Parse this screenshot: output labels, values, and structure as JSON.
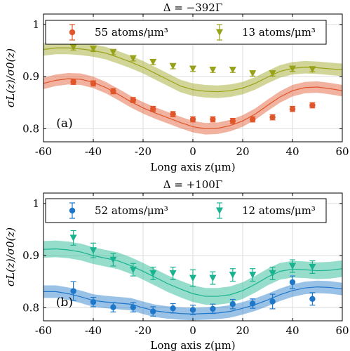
{
  "colors": {
    "red": "#e0552a",
    "olive": "#98a219",
    "blue": "#1f77c9",
    "teal": "#19b38f",
    "grid": "#dddddd",
    "axis": "#000000"
  },
  "chart_data": [
    {
      "type": "scatter",
      "panel_label": "(a)",
      "title": "Δ = −392Γ",
      "xlabel": "Long axis z(μm)",
      "ylabel": "σL(z)/σ0(z)",
      "xlim": [
        -60,
        60
      ],
      "ylim": [
        0.775,
        1.02
      ],
      "xticks": [
        -60,
        -40,
        -20,
        0,
        20,
        40,
        60
      ],
      "yticks": [
        0.8,
        0.9,
        1
      ],
      "ytick_labels": [
        "0.8",
        "0.9",
        "1"
      ],
      "grid": true,
      "legend_position": "top",
      "series": [
        {
          "name": "55 atoms/μm³",
          "color_key": "red",
          "marker": "circle",
          "x": [
            -48,
            -40,
            -32,
            -24,
            -16,
            -8,
            0,
            8,
            16,
            24,
            32,
            40,
            48
          ],
          "y": [
            0.89,
            0.887,
            0.872,
            0.855,
            0.838,
            0.828,
            0.818,
            0.818,
            0.815,
            0.818,
            0.822,
            0.838,
            0.845
          ],
          "err": [
            0.005,
            0.005,
            0.005,
            0.005,
            0.005,
            0.005,
            0.005,
            0.005,
            0.005,
            0.005,
            0.005,
            0.005,
            0.005
          ],
          "curve_x": [
            -60,
            -55,
            -50,
            -45,
            -40,
            -35,
            -30,
            -25,
            -20,
            -15,
            -10,
            -5,
            0,
            5,
            10,
            15,
            20,
            25,
            30,
            35,
            40,
            45,
            50,
            55,
            60
          ],
          "curve_y": [
            0.887,
            0.893,
            0.896,
            0.895,
            0.889,
            0.879,
            0.866,
            0.852,
            0.84,
            0.83,
            0.821,
            0.812,
            0.804,
            0.8,
            0.801,
            0.806,
            0.815,
            0.828,
            0.845,
            0.861,
            0.873,
            0.879,
            0.88,
            0.877,
            0.873
          ],
          "band": 0.011
        },
        {
          "name": "13 atoms/μm³",
          "color_key": "olive",
          "marker": "triangle-down",
          "x": [
            -48,
            -40,
            -32,
            -24,
            -16,
            -8,
            0,
            8,
            16,
            24,
            32,
            40,
            48
          ],
          "y": [
            0.956,
            0.953,
            0.947,
            0.935,
            0.928,
            0.92,
            0.915,
            0.913,
            0.913,
            0.906,
            0.906,
            0.915,
            0.914
          ],
          "err": [
            0.005,
            0.005,
            0.005,
            0.005,
            0.005,
            0.005,
            0.005,
            0.005,
            0.005,
            0.005,
            0.005,
            0.005,
            0.005
          ],
          "curve_x": [
            -60,
            -55,
            -50,
            -45,
            -40,
            -35,
            -30,
            -25,
            -20,
            -15,
            -10,
            -5,
            0,
            5,
            10,
            15,
            20,
            25,
            30,
            35,
            40,
            45,
            50,
            55,
            60
          ],
          "curve_y": [
            0.952,
            0.955,
            0.955,
            0.953,
            0.95,
            0.945,
            0.937,
            0.928,
            0.918,
            0.906,
            0.894,
            0.882,
            0.875,
            0.872,
            0.871,
            0.873,
            0.878,
            0.887,
            0.899,
            0.91,
            0.916,
            0.918,
            0.917,
            0.915,
            0.913
          ],
          "band": 0.012
        }
      ]
    },
    {
      "type": "scatter",
      "panel_label": "(b)",
      "title": "Δ = +100Γ",
      "xlabel": "Long axis z(μm)",
      "ylabel": "σL(z)/σ0(z)",
      "xlim": [
        -60,
        60
      ],
      "ylim": [
        0.775,
        1.02
      ],
      "xticks": [
        -60,
        -40,
        -20,
        0,
        20,
        40,
        60
      ],
      "yticks": [
        0.8,
        0.9,
        1
      ],
      "ytick_labels": [
        "0.8",
        "0.9",
        "1"
      ],
      "grid": true,
      "legend_position": "top",
      "series": [
        {
          "name": "52 atoms/μm³",
          "color_key": "blue",
          "marker": "circle",
          "x": [
            -48,
            -40,
            -32,
            -24,
            -16,
            -8,
            0,
            8,
            16,
            24,
            32,
            40,
            48
          ],
          "y": [
            0.832,
            0.811,
            0.801,
            0.801,
            0.793,
            0.799,
            0.796,
            0.798,
            0.807,
            0.808,
            0.812,
            0.849,
            0.817
          ],
          "err": [
            0.018,
            0.009,
            0.009,
            0.009,
            0.009,
            0.009,
            0.009,
            0.009,
            0.009,
            0.009,
            0.014,
            0.012,
            0.012
          ],
          "curve_x": [
            -60,
            -55,
            -50,
            -45,
            -40,
            -35,
            -30,
            -25,
            -20,
            -15,
            -10,
            -5,
            0,
            5,
            10,
            15,
            20,
            25,
            30,
            35,
            40,
            45,
            50,
            55,
            60
          ],
          "curve_y": [
            0.831,
            0.831,
            0.827,
            0.821,
            0.814,
            0.811,
            0.809,
            0.807,
            0.8,
            0.794,
            0.791,
            0.789,
            0.788,
            0.789,
            0.79,
            0.793,
            0.799,
            0.806,
            0.815,
            0.825,
            0.833,
            0.838,
            0.84,
            0.839,
            0.836
          ],
          "band": 0.012
        },
        {
          "name": "12 atoms/μm³",
          "color_key": "teal",
          "marker": "triangle-down",
          "x": [
            -48,
            -40,
            -32,
            -24,
            -16,
            -8,
            0,
            8,
            16,
            24,
            32,
            40,
            48
          ],
          "y": [
            0.934,
            0.91,
            0.892,
            0.873,
            0.866,
            0.866,
            0.857,
            0.857,
            0.863,
            0.863,
            0.866,
            0.88,
            0.878
          ],
          "err": [
            0.014,
            0.014,
            0.012,
            0.012,
            0.012,
            0.012,
            0.016,
            0.012,
            0.012,
            0.012,
            0.012,
            0.012,
            0.012
          ],
          "curve_x": [
            -60,
            -55,
            -50,
            -45,
            -40,
            -35,
            -30,
            -25,
            -20,
            -15,
            -10,
            -5,
            0,
            5,
            10,
            15,
            20,
            25,
            30,
            35,
            40,
            45,
            50,
            55,
            60
          ],
          "curve_y": [
            0.912,
            0.913,
            0.911,
            0.907,
            0.9,
            0.895,
            0.89,
            0.881,
            0.87,
            0.858,
            0.846,
            0.836,
            0.827,
            0.822,
            0.822,
            0.825,
            0.833,
            0.845,
            0.859,
            0.87,
            0.874,
            0.873,
            0.871,
            0.872,
            0.875
          ],
          "band": 0.016
        }
      ]
    }
  ]
}
